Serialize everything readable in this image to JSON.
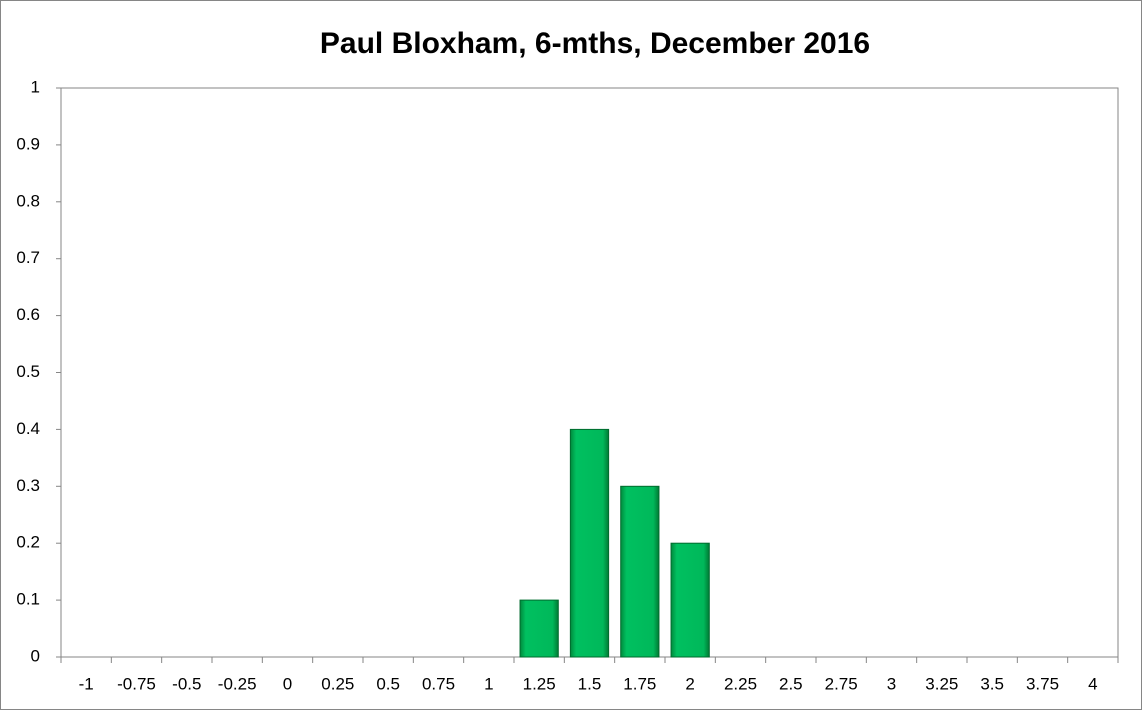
{
  "chart_data": {
    "type": "bar",
    "title": "Paul Bloxham, 6-mths, December 2016",
    "categories": [
      "-1",
      "-0.75",
      "-0.5",
      "-0.25",
      "0",
      "0.25",
      "0.5",
      "0.75",
      "1",
      "1.25",
      "1.5",
      "1.75",
      "2",
      "2.25",
      "2.5",
      "2.75",
      "3",
      "3.25",
      "3.5",
      "3.75",
      "4"
    ],
    "values": [
      0,
      0,
      0,
      0,
      0,
      0,
      0,
      0,
      0,
      0.1,
      0.4,
      0.3,
      0.2,
      0,
      0,
      0,
      0,
      0,
      0,
      0,
      0
    ],
    "color": "#00b050",
    "ylim": [
      0,
      1
    ],
    "yticks": [
      0,
      0.1,
      0.2,
      0.3,
      0.4,
      0.5,
      0.6,
      0.7,
      0.8,
      0.9,
      1
    ],
    "grid": false
  }
}
